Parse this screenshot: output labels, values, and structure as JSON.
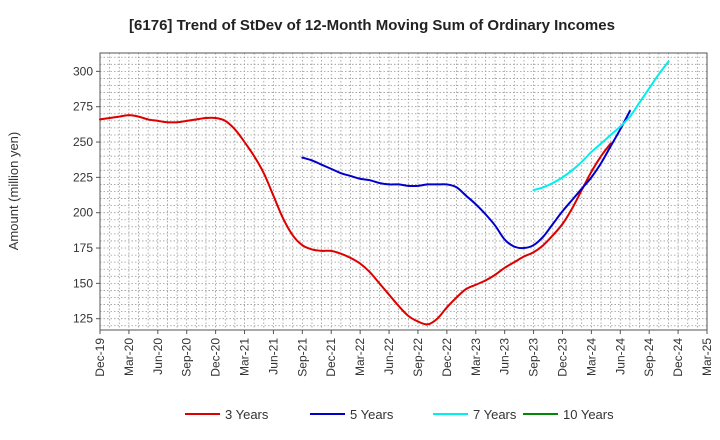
{
  "chart_data": {
    "type": "line",
    "title": "[6176]  Trend of StDev of 12-Month Moving Sum of Ordinary Incomes",
    "xlabel": "",
    "ylabel": "Amount (million yen)",
    "ylim": [
      117,
      313
    ],
    "yticks": [
      125,
      150,
      175,
      200,
      225,
      250,
      275,
      300
    ],
    "xtick_labels": [
      "Dec-19",
      "Mar-20",
      "Jun-20",
      "Sep-20",
      "Dec-20",
      "Mar-21",
      "Jun-21",
      "Sep-21",
      "Dec-21",
      "Mar-22",
      "Jun-22",
      "Sep-22",
      "Dec-22",
      "Mar-23",
      "Jun-23",
      "Sep-23",
      "Dec-23",
      "Mar-24",
      "Jun-24",
      "Sep-24",
      "Dec-24",
      "Mar-25"
    ],
    "x_unit": "month index (0 = Dec-19)",
    "grid": true,
    "legend_position": "bottom",
    "series": [
      {
        "name": "3 Years",
        "color": "#dd0000",
        "points": [
          [
            0,
            266
          ],
          [
            1,
            267
          ],
          [
            2,
            268
          ],
          [
            3,
            269
          ],
          [
            4,
            268
          ],
          [
            5,
            266
          ],
          [
            6,
            265
          ],
          [
            7,
            264
          ],
          [
            8,
            264
          ],
          [
            9,
            265
          ],
          [
            10,
            266
          ],
          [
            11,
            267
          ],
          [
            12,
            267
          ],
          [
            13,
            265
          ],
          [
            14,
            259
          ],
          [
            15,
            250
          ],
          [
            16,
            240
          ],
          [
            17,
            228
          ],
          [
            18,
            212
          ],
          [
            19,
            196
          ],
          [
            20,
            184
          ],
          [
            21,
            177
          ],
          [
            22,
            174
          ],
          [
            23,
            173
          ],
          [
            24,
            173
          ],
          [
            25,
            171
          ],
          [
            26,
            168
          ],
          [
            27,
            164
          ],
          [
            28,
            158
          ],
          [
            29,
            150
          ],
          [
            30,
            142
          ],
          [
            31,
            134
          ],
          [
            32,
            127
          ],
          [
            33,
            123
          ],
          [
            34,
            121
          ],
          [
            35,
            125
          ],
          [
            36,
            133
          ],
          [
            37,
            140
          ],
          [
            38,
            146
          ],
          [
            39,
            149
          ],
          [
            40,
            152
          ],
          [
            41,
            156
          ],
          [
            42,
            161
          ],
          [
            43,
            165
          ],
          [
            44,
            169
          ],
          [
            45,
            172
          ],
          [
            46,
            177
          ],
          [
            47,
            184
          ],
          [
            48,
            192
          ],
          [
            49,
            203
          ],
          [
            50,
            216
          ],
          [
            51,
            229
          ],
          [
            52,
            240
          ],
          [
            53,
            249
          ]
        ]
      },
      {
        "name": "5 Years",
        "color": "#0000cc",
        "points": [
          [
            21,
            239
          ],
          [
            22,
            237
          ],
          [
            23,
            234
          ],
          [
            24,
            231
          ],
          [
            25,
            228
          ],
          [
            26,
            226
          ],
          [
            27,
            224
          ],
          [
            28,
            223
          ],
          [
            29,
            221
          ],
          [
            30,
            220
          ],
          [
            31,
            220
          ],
          [
            32,
            219
          ],
          [
            33,
            219
          ],
          [
            34,
            220
          ],
          [
            35,
            220
          ],
          [
            36,
            220
          ],
          [
            37,
            218
          ],
          [
            38,
            212
          ],
          [
            39,
            206
          ],
          [
            40,
            199
          ],
          [
            41,
            191
          ],
          [
            42,
            181
          ],
          [
            43,
            176
          ],
          [
            44,
            175
          ],
          [
            45,
            177
          ],
          [
            46,
            183
          ],
          [
            47,
            192
          ],
          [
            48,
            201
          ],
          [
            49,
            209
          ],
          [
            50,
            217
          ],
          [
            51,
            225
          ],
          [
            52,
            235
          ],
          [
            53,
            247
          ],
          [
            54,
            259
          ],
          [
            55,
            272
          ]
        ]
      },
      {
        "name": "7 Years",
        "color": "#00eeee",
        "points": [
          [
            45,
            216
          ],
          [
            46,
            218
          ],
          [
            47,
            221
          ],
          [
            48,
            225
          ],
          [
            49,
            230
          ],
          [
            50,
            236
          ],
          [
            51,
            243
          ],
          [
            52,
            249
          ],
          [
            53,
            255
          ],
          [
            54,
            261
          ],
          [
            55,
            268
          ],
          [
            56,
            278
          ],
          [
            57,
            288
          ],
          [
            58,
            298
          ],
          [
            59,
            307
          ]
        ]
      },
      {
        "name": "10 Years",
        "color": "#008800",
        "points": []
      }
    ]
  }
}
